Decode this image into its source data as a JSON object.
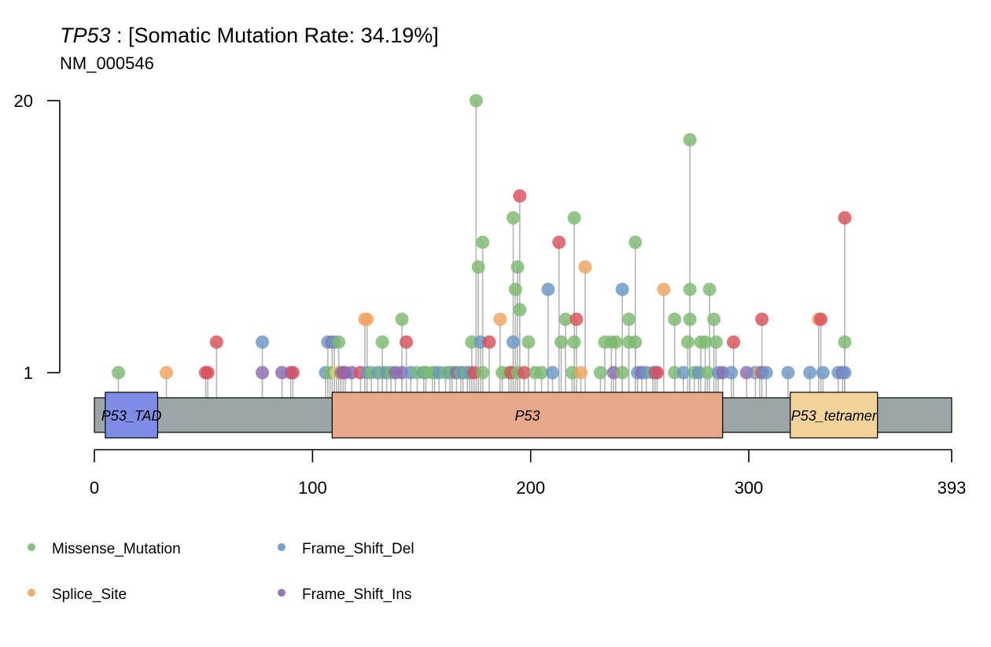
{
  "chart_data": {
    "type": "lollipop",
    "gene": "TP53",
    "title_rest": " : [Somatic Mutation Rate: 34.19%]",
    "subtitle": "NM_000546",
    "protein_length": 393,
    "x_ticks": [
      0,
      100,
      200,
      300,
      393
    ],
    "y_ticks": [
      1,
      20
    ],
    "y_scale": "log",
    "domains": [
      {
        "label": "P53_TAD",
        "start": 5,
        "end": 29,
        "color": "#7f8ce6"
      },
      {
        "label": "P53",
        "start": 109,
        "end": 288,
        "color": "#e8a98a"
      },
      {
        "label": "P53_tetramer",
        "start": 319,
        "end": 359,
        "color": "#f2d49b"
      }
    ],
    "colors": {
      "Missense_Mutation": "#7cb96f",
      "Splice_Site": "#f0a35e",
      "Nonsense_Mutation": "#d9505a",
      "Frame_Shift_Del": "#6a96c4",
      "Frame_Shift_Ins": "#8b6bb0",
      "In_Frame_Del": "#e8cf6b",
      "background_line": "#b5b5b5",
      "protein_bar": "#9aa6a8"
    },
    "legend": [
      {
        "label": "Missense_Mutation",
        "key": "Missense_Mutation"
      },
      {
        "label": "Frame_Shift_Del",
        "key": "Frame_Shift_Del"
      },
      {
        "label": "Splice_Site",
        "key": "Splice_Site"
      },
      {
        "label": "Frame_Shift_Ins",
        "key": "Frame_Shift_Ins"
      }
    ],
    "mutations": [
      [
        11,
        "Missense_Mutation",
        1
      ],
      [
        33,
        "Splice_Site",
        1
      ],
      [
        51,
        "Nonsense_Mutation",
        1
      ],
      [
        52,
        "Nonsense_Mutation",
        1
      ],
      [
        56,
        "Nonsense_Mutation",
        1.4
      ],
      [
        77,
        "Frame_Shift_Del",
        1.4
      ],
      [
        77,
        "Frame_Shift_Ins",
        1
      ],
      [
        86,
        "Frame_Shift_Ins",
        1
      ],
      [
        90,
        "Frame_Shift_Ins",
        1
      ],
      [
        91,
        "Nonsense_Mutation",
        1
      ],
      [
        106,
        "Frame_Shift_Del",
        1
      ],
      [
        107,
        "Frame_Shift_Del",
        1.4
      ],
      [
        108,
        "Missense_Mutation",
        1
      ],
      [
        109,
        "Frame_Shift_Ins",
        1.4
      ],
      [
        110,
        "Frame_Shift_Del",
        1.4
      ],
      [
        111,
        "In_Frame_Del",
        1
      ],
      [
        112,
        "Missense_Mutation",
        1.4
      ],
      [
        113,
        "Frame_Shift_Del",
        1
      ],
      [
        114,
        "Nonsense_Mutation",
        1
      ],
      [
        115,
        "Frame_Shift_Ins",
        1
      ],
      [
        118,
        "Frame_Shift_Ins",
        1
      ],
      [
        122,
        "Nonsense_Mutation",
        1
      ],
      [
        124,
        "Splice_Site",
        1.8
      ],
      [
        125,
        "Splice_Site",
        1.8
      ],
      [
        125,
        "Frame_Shift_Del",
        1
      ],
      [
        127,
        "Missense_Mutation",
        1
      ],
      [
        130,
        "Frame_Shift_Del",
        1
      ],
      [
        132,
        "Missense_Mutation",
        1.4
      ],
      [
        132,
        "Missense_Mutation",
        1
      ],
      [
        134,
        "Frame_Shift_Del",
        1
      ],
      [
        136,
        "Missense_Mutation",
        1
      ],
      [
        138,
        "Frame_Shift_Ins",
        1
      ],
      [
        141,
        "Missense_Mutation",
        1.8
      ],
      [
        141,
        "Frame_Shift_Ins",
        1
      ],
      [
        143,
        "Nonsense_Mutation",
        1.4
      ],
      [
        145,
        "Frame_Shift_Del",
        1
      ],
      [
        148,
        "Missense_Mutation",
        1
      ],
      [
        151,
        "Frame_Shift_Del",
        1
      ],
      [
        152,
        "Missense_Mutation",
        1
      ],
      [
        155,
        "Missense_Mutation",
        1
      ],
      [
        156,
        "Missense_Mutation",
        1
      ],
      [
        158,
        "Frame_Shift_Del",
        1
      ],
      [
        161,
        "Missense_Mutation",
        1
      ],
      [
        163,
        "Frame_Shift_Del",
        1
      ],
      [
        164,
        "Missense_Mutation",
        1
      ],
      [
        166,
        "Frame_Shift_Ins",
        1
      ],
      [
        168,
        "Missense_Mutation",
        1
      ],
      [
        169,
        "Frame_Shift_Del",
        1
      ],
      [
        171,
        "Missense_Mutation",
        1
      ],
      [
        172,
        "Frame_Shift_Del",
        1
      ],
      [
        173,
        "Missense_Mutation",
        1.4
      ],
      [
        174,
        "Nonsense_Mutation",
        1
      ],
      [
        175,
        "Missense_Mutation",
        20
      ],
      [
        176,
        "Missense_Mutation",
        3.2
      ],
      [
        177,
        "Frame_Shift_Del",
        1.4
      ],
      [
        178,
        "Missense_Mutation",
        4.2
      ],
      [
        178,
        "Missense_Mutation",
        1
      ],
      [
        181,
        "Nonsense_Mutation",
        1.4
      ],
      [
        186,
        "Splice_Site",
        1.8
      ],
      [
        187,
        "Missense_Mutation",
        1
      ],
      [
        190,
        "Missense_Mutation",
        1
      ],
      [
        191,
        "Nonsense_Mutation",
        1
      ],
      [
        192,
        "Missense_Mutation",
        5.5
      ],
      [
        192,
        "Frame_Shift_Del",
        1.4
      ],
      [
        193,
        "Missense_Mutation",
        2.5
      ],
      [
        194,
        "Missense_Mutation",
        3.2
      ],
      [
        194,
        "Missense_Mutation",
        1
      ],
      [
        195,
        "Nonsense_Mutation",
        7
      ],
      [
        195,
        "Missense_Mutation",
        2
      ],
      [
        197,
        "Nonsense_Mutation",
        1
      ],
      [
        199,
        "Missense_Mutation",
        1.4
      ],
      [
        202,
        "Missense_Mutation",
        1
      ],
      [
        205,
        "Missense_Mutation",
        1
      ],
      [
        208,
        "Frame_Shift_Del",
        2.5
      ],
      [
        210,
        "Frame_Shift_Del",
        1
      ],
      [
        213,
        "Nonsense_Mutation",
        4.2
      ],
      [
        214,
        "Missense_Mutation",
        1.4
      ],
      [
        216,
        "Missense_Mutation",
        1.8
      ],
      [
        219,
        "Missense_Mutation",
        1
      ],
      [
        220,
        "Missense_Mutation",
        5.5
      ],
      [
        220,
        "Missense_Mutation",
        1.4
      ],
      [
        221,
        "Nonsense_Mutation",
        1.8
      ],
      [
        223,
        "Splice_Site",
        1
      ],
      [
        225,
        "Splice_Site",
        3.2
      ],
      [
        232,
        "Missense_Mutation",
        1
      ],
      [
        234,
        "Missense_Mutation",
        1.4
      ],
      [
        237,
        "Missense_Mutation",
        1.4
      ],
      [
        238,
        "Frame_Shift_Ins",
        1
      ],
      [
        239,
        "Missense_Mutation",
        1.4
      ],
      [
        242,
        "Frame_Shift_Del",
        2.5
      ],
      [
        242,
        "Missense_Mutation",
        1
      ],
      [
        245,
        "Missense_Mutation",
        1.8
      ],
      [
        245,
        "Missense_Mutation",
        1.4
      ],
      [
        248,
        "Missense_Mutation",
        4.2
      ],
      [
        248,
        "Missense_Mutation",
        1.4
      ],
      [
        249,
        "Frame_Shift_Del",
        1
      ],
      [
        251,
        "Frame_Shift_Ins",
        1
      ],
      [
        253,
        "Frame_Shift_Del",
        1
      ],
      [
        256,
        "Missense_Mutation",
        1
      ],
      [
        257,
        "Frame_Shift_Ins",
        1
      ],
      [
        258,
        "Nonsense_Mutation",
        1
      ],
      [
        261,
        "Splice_Site",
        2.5
      ],
      [
        266,
        "Missense_Mutation",
        1.8
      ],
      [
        266,
        "Missense_Mutation",
        1
      ],
      [
        270,
        "Frame_Shift_Del",
        1
      ],
      [
        272,
        "Missense_Mutation",
        1.4
      ],
      [
        273,
        "Missense_Mutation",
        13
      ],
      [
        273,
        "Missense_Mutation",
        2.5
      ],
      [
        273,
        "Missense_Mutation",
        1.8
      ],
      [
        275,
        "Missense_Mutation",
        1
      ],
      [
        277,
        "Frame_Shift_Del",
        1
      ],
      [
        278,
        "Missense_Mutation",
        1.4
      ],
      [
        280,
        "Missense_Mutation",
        1.4
      ],
      [
        281,
        "Missense_Mutation",
        1
      ],
      [
        282,
        "Missense_Mutation",
        2.5
      ],
      [
        284,
        "Missense_Mutation",
        1.8
      ],
      [
        285,
        "Missense_Mutation",
        1.4
      ],
      [
        286,
        "Frame_Shift_Del",
        1
      ],
      [
        288,
        "Frame_Shift_Ins",
        1
      ],
      [
        292,
        "Frame_Shift_Del",
        1
      ],
      [
        293,
        "Nonsense_Mutation",
        1.4
      ],
      [
        299,
        "Frame_Shift_Ins",
        1
      ],
      [
        303,
        "Frame_Shift_Del",
        1
      ],
      [
        305,
        "Splice_Site",
        1
      ],
      [
        306,
        "Nonsense_Mutation",
        1.8
      ],
      [
        306,
        "Frame_Shift_Ins",
        1
      ],
      [
        308,
        "Frame_Shift_Del",
        1
      ],
      [
        318,
        "Frame_Shift_Del",
        1
      ],
      [
        328,
        "Frame_Shift_Del",
        1
      ],
      [
        332,
        "Splice_Site",
        1.8
      ],
      [
        333,
        "Nonsense_Mutation",
        1.8
      ],
      [
        334,
        "Frame_Shift_Del",
        1
      ],
      [
        341,
        "Frame_Shift_Del",
        1
      ],
      [
        343,
        "Frame_Shift_Ins",
        1
      ],
      [
        344,
        "Nonsense_Mutation",
        5.5
      ],
      [
        344,
        "Missense_Mutation",
        1.4
      ],
      [
        344,
        "Frame_Shift_Del",
        1
      ]
    ]
  }
}
